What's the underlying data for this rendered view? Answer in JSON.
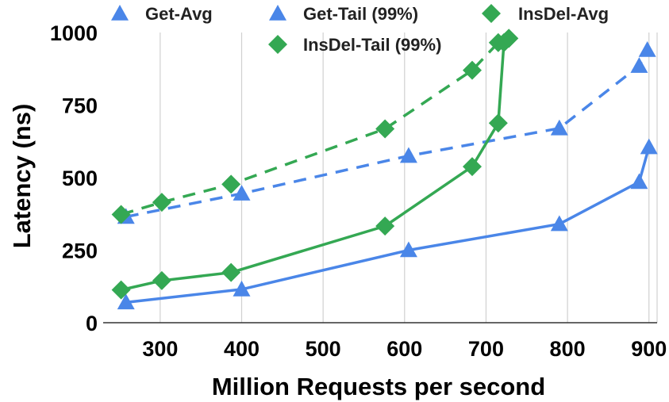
{
  "chart_data": {
    "type": "line",
    "xlabel": "Million Requests per second",
    "ylabel": "Latency (ns)",
    "xlim": [
      230,
      910
    ],
    "ylim": [
      0,
      1000
    ],
    "xticks": [
      300,
      400,
      500,
      600,
      700,
      800,
      900
    ],
    "yticks": [
      0,
      250,
      500,
      750,
      1000
    ],
    "grid": "vertical",
    "legend_position": "top",
    "series": [
      {
        "name": "Get-Avg",
        "marker": "triangle",
        "line": "solid",
        "color": "#4a86e8",
        "x": [
          258,
          400,
          605,
          790,
          888,
          900
        ],
        "y": [
          70,
          115,
          250,
          340,
          485,
          605
        ]
      },
      {
        "name": "Get-Tail (99%)",
        "marker": "triangle",
        "line": "dashed",
        "color": "#4a86e8",
        "x": [
          258,
          400,
          605,
          790,
          888,
          898
        ],
        "y": [
          365,
          445,
          575,
          670,
          885,
          940
        ]
      },
      {
        "name": "InsDel-Avg",
        "marker": "diamond",
        "line": "solid",
        "color": "#34a853",
        "x": [
          252,
          302,
          387,
          576,
          683,
          715,
          722,
          728
        ],
        "y": [
          113,
          145,
          173,
          333,
          538,
          688,
          965,
          980
        ]
      },
      {
        "name": "InsDel-Tail (99%)",
        "marker": "diamond",
        "line": "dashed",
        "color": "#34a853",
        "x": [
          252,
          302,
          387,
          576,
          683,
          715,
          728
        ],
        "y": [
          373,
          415,
          477,
          668,
          870,
          965,
          980
        ]
      }
    ]
  }
}
